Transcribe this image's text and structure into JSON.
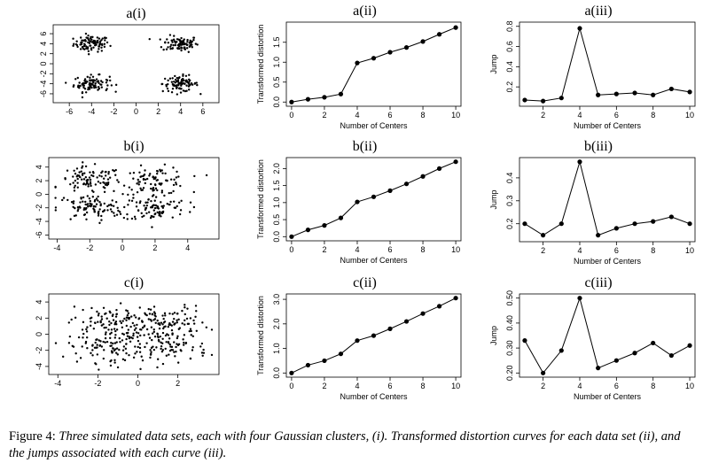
{
  "caption": {
    "lead": "Figure 4:",
    "body": "Three simulated data sets, each with four Gaussian clusters, (i). Transformed distortion curves for each data set (ii), and the jumps associated with each curve (iii)."
  },
  "chart_data": [
    {
      "panel": "a(i)",
      "type": "scatter",
      "title": "a(i)",
      "xlabel": "",
      "ylabel": "",
      "xlim": [
        -7,
        7
      ],
      "ylim": [
        -7,
        7
      ],
      "xticks": [
        "-6",
        "-4",
        "-2",
        "0",
        "2",
        "4",
        "6"
      ],
      "yticks": [
        "-6",
        "-4",
        "-2",
        "0",
        "2",
        "4",
        "6"
      ],
      "clusters": [
        {
          "center": [
            -4,
            4
          ],
          "sd": 0.8
        },
        {
          "center": [
            4,
            4
          ],
          "sd": 0.8
        },
        {
          "center": [
            -4,
            -4
          ],
          "sd": 0.8
        },
        {
          "center": [
            4,
            -4
          ],
          "sd": 0.8
        }
      ],
      "points_per_cluster": 90
    },
    {
      "panel": "a(ii)",
      "type": "line",
      "title": "a(ii)",
      "xlabel": "Number of Centers",
      "ylabel": "Transformed distortion",
      "x": [
        0,
        1,
        2,
        3,
        4,
        5,
        6,
        7,
        8,
        9,
        10
      ],
      "values": [
        0.0,
        0.07,
        0.12,
        0.2,
        0.98,
        1.1,
        1.25,
        1.37,
        1.52,
        1.7,
        1.87
      ],
      "xlim": [
        0,
        10
      ],
      "ylim": [
        0,
        1.9
      ],
      "xticks": [
        "0",
        "2",
        "4",
        "6",
        "8",
        "10"
      ],
      "yticks": [
        "0.0",
        "0.5",
        "1.0",
        "1.5"
      ]
    },
    {
      "panel": "a(iii)",
      "type": "line",
      "title": "a(iii)",
      "xlabel": "Number of Centers",
      "ylabel": "Jump",
      "x": [
        1,
        2,
        3,
        4,
        5,
        6,
        7,
        8,
        9,
        10
      ],
      "values": [
        0.07,
        0.06,
        0.09,
        0.78,
        0.12,
        0.13,
        0.14,
        0.12,
        0.18,
        0.15
      ],
      "xlim": [
        1,
        10
      ],
      "ylim": [
        0.05,
        0.8
      ],
      "xticks": [
        "2",
        "4",
        "6",
        "8",
        "10"
      ],
      "yticks": [
        "0.2",
        "0.4",
        "0.6",
        "0.8"
      ]
    },
    {
      "panel": "b(i)",
      "type": "scatter",
      "title": "b(i)",
      "xlabel": "",
      "ylabel": "",
      "xlim": [
        -4.2,
        5.6
      ],
      "ylim": [
        -6,
        4.8
      ],
      "xticks": [
        "-4",
        "-2",
        "0",
        "2",
        "4"
      ],
      "yticks": [
        "-6",
        "-4",
        "-2",
        "0",
        "2",
        "4"
      ],
      "clusters": [
        {
          "center": [
            -2,
            2
          ],
          "sd": 1.0
        },
        {
          "center": [
            2,
            2
          ],
          "sd": 1.0
        },
        {
          "center": [
            -2,
            -2
          ],
          "sd": 1.0
        },
        {
          "center": [
            2,
            -2
          ],
          "sd": 1.0
        }
      ],
      "points_per_cluster": 90
    },
    {
      "panel": "b(ii)",
      "type": "line",
      "title": "b(ii)",
      "xlabel": "Number of Centers",
      "ylabel": "Transformed distortion",
      "x": [
        0,
        1,
        2,
        3,
        4,
        5,
        6,
        7,
        8,
        9,
        10
      ],
      "values": [
        0.0,
        0.2,
        0.33,
        0.55,
        1.02,
        1.17,
        1.35,
        1.55,
        1.77,
        2.0,
        2.2
      ],
      "xlim": [
        0,
        10
      ],
      "ylim": [
        0,
        2.2
      ],
      "xticks": [
        "0",
        "2",
        "4",
        "6",
        "8",
        "10"
      ],
      "yticks": [
        "0.0",
        "0.5",
        "1.0",
        "1.5",
        "2.0"
      ]
    },
    {
      "panel": "b(iii)",
      "type": "line",
      "title": "b(iii)",
      "xlabel": "Number of Centers",
      "ylabel": "Jump",
      "x": [
        1,
        2,
        3,
        4,
        5,
        6,
        7,
        8,
        9,
        10
      ],
      "values": [
        0.2,
        0.15,
        0.2,
        0.47,
        0.15,
        0.18,
        0.2,
        0.21,
        0.23,
        0.2
      ],
      "xlim": [
        1,
        10
      ],
      "ylim": [
        0.14,
        0.47
      ],
      "xticks": [
        "2",
        "4",
        "6",
        "8",
        "10"
      ],
      "yticks": [
        "0.2",
        "0.3",
        "0.4"
      ]
    },
    {
      "panel": "c(i)",
      "type": "scatter",
      "title": "c(i)",
      "xlabel": "",
      "ylabel": "",
      "xlim": [
        -4.2,
        3.8
      ],
      "ylim": [
        -4.5,
        4.5
      ],
      "xticks": [
        "-4",
        "-2",
        "0",
        "2"
      ],
      "yticks": [
        "-4",
        "-2",
        "0",
        "2",
        "4"
      ],
      "clusters": [
        {
          "center": [
            -1.5,
            1.5
          ],
          "sd": 1.0
        },
        {
          "center": [
            1.5,
            1.5
          ],
          "sd": 1.0
        },
        {
          "center": [
            -1.5,
            -1.5
          ],
          "sd": 1.0
        },
        {
          "center": [
            1.5,
            -1.5
          ],
          "sd": 1.0
        }
      ],
      "points_per_cluster": 95
    },
    {
      "panel": "c(ii)",
      "type": "line",
      "title": "c(ii)",
      "xlabel": "Number of Centers",
      "ylabel": "Transformed distortion",
      "x": [
        0,
        1,
        2,
        3,
        4,
        5,
        6,
        7,
        8,
        9,
        10
      ],
      "values": [
        0.0,
        0.32,
        0.5,
        0.78,
        1.32,
        1.52,
        1.8,
        2.1,
        2.42,
        2.72,
        3.05
      ],
      "xlim": [
        0,
        10
      ],
      "ylim": [
        0,
        3.05
      ],
      "xticks": [
        "0",
        "2",
        "4",
        "6",
        "8",
        "10"
      ],
      "yticks": [
        "0.0",
        "1.0",
        "2.0",
        "3.0"
      ]
    },
    {
      "panel": "c(iii)",
      "type": "line",
      "title": "c(iii)",
      "xlabel": "Number of Centers",
      "ylabel": "Jump",
      "x": [
        1,
        2,
        3,
        4,
        5,
        6,
        7,
        8,
        9,
        10
      ],
      "values": [
        0.33,
        0.2,
        0.29,
        0.5,
        0.22,
        0.25,
        0.28,
        0.32,
        0.27,
        0.31
      ],
      "xlim": [
        1,
        10
      ],
      "ylim": [
        0.2,
        0.5
      ],
      "xticks": [
        "2",
        "4",
        "6",
        "8",
        "10"
      ],
      "yticks": [
        "0.20",
        "0.30",
        "0.40",
        "0.50"
      ]
    }
  ]
}
